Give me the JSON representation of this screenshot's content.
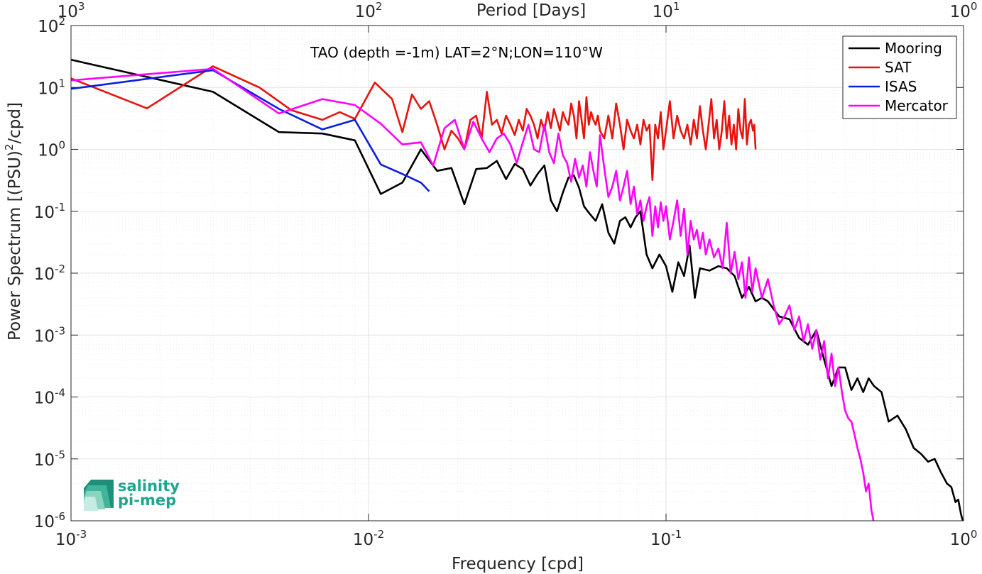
{
  "chart_data": {
    "type": "line",
    "title": "TAO (depth =-1m) LAT=2°N;LON=110°W",
    "xlabel": "Frequency [cpd]",
    "ylabel": "Power Spectrum [(PSU)",
    "ylabel_sup": "2",
    "ylabel_tail": "/cpd]",
    "top_xlabel": "Period [Days]",
    "xscale": "log",
    "yscale": "log",
    "xlim": [
      0.001,
      1
    ],
    "ylim": [
      1e-06,
      100
    ],
    "grid": true,
    "legend_position": "top-right",
    "x_ticks": [
      {
        "value": 0.001,
        "base": "10",
        "exp": "-3"
      },
      {
        "value": 0.01,
        "base": "10",
        "exp": "-2"
      },
      {
        "value": 0.1,
        "base": "10",
        "exp": "-1"
      },
      {
        "value": 1,
        "base": "10",
        "exp": "0"
      }
    ],
    "top_ticks": [
      {
        "value": 0.001,
        "base": "10",
        "exp": "3"
      },
      {
        "value": 0.01,
        "base": "10",
        "exp": "2"
      },
      {
        "value": 0.1,
        "base": "10",
        "exp": "1"
      },
      {
        "value": 1,
        "base": "10",
        "exp": "0"
      }
    ],
    "y_ticks": [
      {
        "value": 1e-06,
        "base": "10",
        "exp": "-6"
      },
      {
        "value": 1e-05,
        "base": "10",
        "exp": "-5"
      },
      {
        "value": 0.0001,
        "base": "10",
        "exp": "-4"
      },
      {
        "value": 0.001,
        "base": "10",
        "exp": "-3"
      },
      {
        "value": 0.01,
        "base": "10",
        "exp": "-2"
      },
      {
        "value": 0.1,
        "base": "10",
        "exp": "-1"
      },
      {
        "value": 1,
        "base": "10",
        "exp": "0"
      },
      {
        "value": 10,
        "base": "10",
        "exp": "1"
      },
      {
        "value": 100,
        "base": "10",
        "exp": "2"
      }
    ],
    "series": [
      {
        "name": "Mooring",
        "color": "#000000",
        "x": [
          0.001,
          0.003,
          0.005,
          0.007,
          0.009,
          0.011,
          0.013,
          0.015,
          0.017,
          0.019,
          0.021,
          0.023,
          0.025,
          0.027,
          0.029,
          0.031,
          0.033,
          0.035,
          0.037,
          0.039,
          0.041,
          0.043,
          0.045,
          0.047,
          0.049,
          0.051,
          0.053,
          0.055,
          0.058,
          0.061,
          0.064,
          0.067,
          0.07,
          0.073,
          0.076,
          0.079,
          0.082,
          0.086,
          0.09,
          0.095,
          0.1,
          0.105,
          0.11,
          0.115,
          0.12,
          0.125,
          0.13,
          0.14,
          0.15,
          0.16,
          0.17,
          0.18,
          0.19,
          0.2,
          0.21,
          0.22,
          0.24,
          0.26,
          0.28,
          0.3,
          0.32,
          0.34,
          0.36,
          0.38,
          0.4,
          0.42,
          0.44,
          0.46,
          0.48,
          0.5,
          0.53,
          0.56,
          0.6,
          0.64,
          0.68,
          0.72,
          0.76,
          0.8,
          0.84,
          0.88,
          0.91,
          0.94,
          0.96,
          0.98,
          1.0
        ],
        "y": [
          28,
          8.5,
          1.9,
          1.8,
          1.4,
          0.19,
          0.29,
          1.0,
          0.45,
          0.5,
          0.13,
          0.48,
          0.5,
          0.65,
          0.33,
          0.58,
          0.48,
          0.26,
          0.4,
          0.55,
          0.15,
          0.1,
          0.2,
          0.35,
          0.38,
          0.24,
          0.12,
          0.095,
          0.07,
          0.13,
          0.045,
          0.03,
          0.07,
          0.08,
          0.055,
          0.08,
          0.1,
          0.02,
          0.012,
          0.02,
          0.013,
          0.005,
          0.015,
          0.009,
          0.028,
          0.004,
          0.012,
          0.011,
          0.013,
          0.012,
          0.009,
          0.004,
          0.006,
          0.0035,
          0.004,
          0.0035,
          0.002,
          0.0018,
          0.0009,
          0.0007,
          0.0012,
          0.0004,
          0.00015,
          0.0003,
          0.0003,
          0.00013,
          0.0002,
          0.00012,
          0.0002,
          0.00015,
          0.00012,
          4e-05,
          5e-05,
          3e-05,
          1.5e-05,
          1.2e-05,
          9e-06,
          1e-05,
          6e-06,
          4e-06,
          3.5e-06,
          2e-06,
          2.2e-06,
          1.3e-06,
          9e-07
        ]
      },
      {
        "name": "SAT",
        "color": "#e8120e",
        "x": [
          0.001,
          0.0018,
          0.003,
          0.0043,
          0.0055,
          0.007,
          0.008,
          0.009,
          0.0105,
          0.012,
          0.013,
          0.014,
          0.015,
          0.016,
          0.017,
          0.018,
          0.019,
          0.02,
          0.021,
          0.022,
          0.023,
          0.024,
          0.025,
          0.026,
          0.027,
          0.028,
          0.029,
          0.03,
          0.031,
          0.032,
          0.033,
          0.034,
          0.035,
          0.036,
          0.037,
          0.038,
          0.039,
          0.04,
          0.041,
          0.042,
          0.043,
          0.044,
          0.045,
          0.046,
          0.047,
          0.048,
          0.049,
          0.05,
          0.051,
          0.052,
          0.053,
          0.054,
          0.055,
          0.056,
          0.057,
          0.058,
          0.059,
          0.06,
          0.062,
          0.064,
          0.066,
          0.068,
          0.07,
          0.072,
          0.074,
          0.076,
          0.078,
          0.08,
          0.082,
          0.084,
          0.086,
          0.088,
          0.09,
          0.092,
          0.094,
          0.096,
          0.098,
          0.1,
          0.103,
          0.106,
          0.109,
          0.112,
          0.115,
          0.118,
          0.121,
          0.124,
          0.127,
          0.13,
          0.133,
          0.136,
          0.139,
          0.142,
          0.145,
          0.148,
          0.151,
          0.154,
          0.157,
          0.16,
          0.163,
          0.166,
          0.169,
          0.172,
          0.175,
          0.178,
          0.181,
          0.184,
          0.187,
          0.19,
          0.193,
          0.196,
          0.198,
          0.2
        ],
        "y": [
          14,
          4.6,
          22,
          10,
          4.3,
          3.0,
          4.0,
          3.1,
          12,
          6.5,
          1.9,
          7.7,
          4.5,
          6.0,
          2.5,
          1.0,
          2.0,
          1.5,
          1.0,
          3.0,
          3.5,
          1.5,
          8.5,
          2.5,
          3.0,
          1.8,
          3.5,
          2.5,
          1.7,
          3.0,
          2.0,
          4.5,
          3.5,
          2.5,
          1.5,
          3.0,
          2.0,
          4.0,
          2.2,
          4.5,
          3.0,
          2.0,
          4.0,
          3.0,
          2.5,
          5.5,
          3.5,
          1.5,
          6.0,
          3.0,
          1.5,
          7.0,
          2.5,
          4.0,
          3.0,
          2.5,
          3.5,
          2.0,
          1.5,
          3.5,
          1.5,
          5.5,
          2.5,
          1.0,
          3.0,
          2.0,
          1.5,
          2.5,
          1.2,
          3.0,
          2.0,
          2.5,
          0.32,
          2.5,
          1.5,
          4.0,
          1.0,
          2.0,
          6.0,
          1.5,
          3.5,
          2.0,
          1.5,
          2.5,
          1.2,
          3.0,
          1.5,
          5.0,
          2.0,
          1.0,
          2.5,
          6.5,
          1.5,
          3.0,
          1.0,
          2.0,
          6.0,
          1.5,
          3.5,
          1.2,
          2.5,
          1.0,
          4.5,
          2.0,
          1.5,
          6.5,
          1.2,
          2.5,
          3.0,
          2.0,
          2.5,
          1.0
        ]
      },
      {
        "name": "ISAS",
        "color": "#0b1ee0",
        "x": [
          0.001,
          0.003,
          0.005,
          0.007,
          0.009,
          0.011,
          0.013,
          0.015,
          0.016
        ],
        "y": [
          9.5,
          19,
          4.5,
          2.1,
          3.0,
          0.57,
          0.4,
          0.29,
          0.21
        ]
      },
      {
        "name": "Mercator",
        "color": "#ff00ff",
        "x": [
          0.001,
          0.003,
          0.005,
          0.007,
          0.009,
          0.011,
          0.013,
          0.015,
          0.0165,
          0.018,
          0.0195,
          0.021,
          0.0225,
          0.024,
          0.0255,
          0.027,
          0.0285,
          0.03,
          0.0315,
          0.033,
          0.0345,
          0.036,
          0.0375,
          0.039,
          0.0405,
          0.042,
          0.0435,
          0.045,
          0.0465,
          0.048,
          0.0495,
          0.051,
          0.0525,
          0.054,
          0.0555,
          0.057,
          0.0585,
          0.06,
          0.062,
          0.064,
          0.066,
          0.068,
          0.07,
          0.072,
          0.074,
          0.076,
          0.078,
          0.08,
          0.082,
          0.084,
          0.086,
          0.088,
          0.09,
          0.092,
          0.094,
          0.096,
          0.098,
          0.1,
          0.103,
          0.106,
          0.109,
          0.112,
          0.115,
          0.118,
          0.121,
          0.124,
          0.127,
          0.13,
          0.133,
          0.136,
          0.14,
          0.145,
          0.15,
          0.155,
          0.16,
          0.165,
          0.17,
          0.175,
          0.18,
          0.185,
          0.19,
          0.195,
          0.2,
          0.21,
          0.22,
          0.23,
          0.24,
          0.25,
          0.26,
          0.27,
          0.28,
          0.29,
          0.3,
          0.31,
          0.32,
          0.33,
          0.34,
          0.35,
          0.36,
          0.37,
          0.38,
          0.39,
          0.4,
          0.41,
          0.42,
          0.43,
          0.44,
          0.45,
          0.46,
          0.47,
          0.48,
          0.49,
          0.5
        ],
        "y": [
          13,
          20,
          3.8,
          6.5,
          5.2,
          2.6,
          1.2,
          1.3,
          0.55,
          2.2,
          3.0,
          1.0,
          2.8,
          1.5,
          0.9,
          1.5,
          1.8,
          1.2,
          0.6,
          1.3,
          2.5,
          1.0,
          0.9,
          2.5,
          0.9,
          0.6,
          1.8,
          0.8,
          0.6,
          0.3,
          0.7,
          0.35,
          0.55,
          0.25,
          0.9,
          0.45,
          0.25,
          1.7,
          0.5,
          0.17,
          0.25,
          0.45,
          0.15,
          0.25,
          0.45,
          0.13,
          0.25,
          0.09,
          0.15,
          0.07,
          0.12,
          0.17,
          0.04,
          0.12,
          0.055,
          0.14,
          0.07,
          0.12,
          0.035,
          0.07,
          0.15,
          0.04,
          0.11,
          0.02,
          0.07,
          0.035,
          0.05,
          0.025,
          0.045,
          0.02,
          0.035,
          0.018,
          0.025,
          0.012,
          0.065,
          0.01,
          0.022,
          0.008,
          0.015,
          0.004,
          0.018,
          0.005,
          0.012,
          0.004,
          0.008,
          0.003,
          0.0015,
          0.002,
          0.003,
          0.0012,
          0.002,
          0.0008,
          0.0015,
          0.0006,
          0.0012,
          0.0004,
          0.0008,
          0.0002,
          0.0005,
          0.00015,
          0.0003,
          0.00012,
          6e-05,
          4.5e-05,
          4e-05,
          2.5e-05,
          1.5e-05,
          1e-05,
          6e-06,
          3e-06,
          4e-06,
          1.5e-06,
          9e-07
        ]
      }
    ]
  },
  "logo": {
    "line1": "salinity",
    "line2": "pi-mep",
    "color": "#1fa58f"
  }
}
